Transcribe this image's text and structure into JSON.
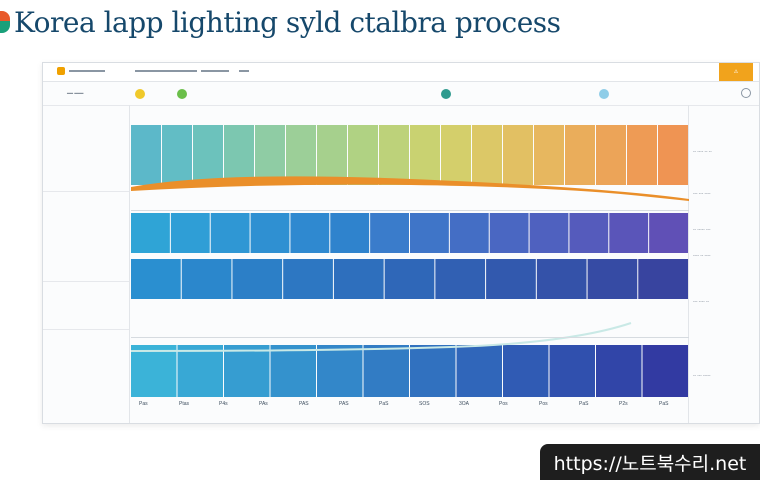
{
  "page": {
    "title": "Korea lapp lighting syld ctalbra process",
    "watermark": "https://노트북수리.net"
  },
  "colors": {
    "title_text": "#16486b",
    "accent_orange": "#f1a31c",
    "blue_primary": "#2e7fd0",
    "teal": "#3fb6c9",
    "green": "#6bbf4a"
  },
  "window": {
    "badge_icon": "alert-badge-icon",
    "search_icon": "search-icon"
  },
  "bands": {
    "top": [
      "#5cb8c9",
      "#62bdc5",
      "#6cc2bc",
      "#7cc7b0",
      "#8fcca4",
      "#9ccf98",
      "#a6d08d",
      "#b0d283",
      "#bdd27a",
      "#c9d271",
      "#d4cf6b",
      "#dcc867",
      "#e2c063",
      "#e7b75f",
      "#eaad5b",
      "#eca458",
      "#ee9b55",
      "#ef9453"
    ],
    "middle": [
      "#2fa4d6",
      "#2f9ed6",
      "#2f97d4",
      "#2f90d2",
      "#2f89d0",
      "#2f83cd",
      "#3a7ccb",
      "#3f75c8",
      "#446ec5",
      "#4a67c2",
      "#4f61bf",
      "#555bbc",
      "#5a55b9",
      "#6050b6"
    ],
    "lower": [
      "#2a8fd0",
      "#2b87cc",
      "#2c7fc7",
      "#2d77c2",
      "#2e6fbd",
      "#2f67b8",
      "#3160b3",
      "#3259ae",
      "#3452a9",
      "#364ba4",
      "#38449f"
    ],
    "bottom": [
      "#3bb3d8",
      "#38a8d5",
      "#369dd1",
      "#3492cd",
      "#3387c9",
      "#327cc4",
      "#3171bf",
      "#3066ba",
      "#305bb4",
      "#3050ae",
      "#3145a8",
      "#323aa2"
    ]
  },
  "footer_ticks": [
    "Pas",
    "Ptas",
    "P4s",
    "PAs",
    "PAS",
    "PAS",
    "PaS",
    "SOS",
    "3OA",
    "Pos",
    "Pos",
    "PaS",
    "P2s",
    "PaS"
  ],
  "right_notes": [
    "-- ---- -- --",
    "--- --- ----",
    "-- ----- ---",
    "---- -- ----",
    "--- ---- --",
    "-- --- -----"
  ]
}
